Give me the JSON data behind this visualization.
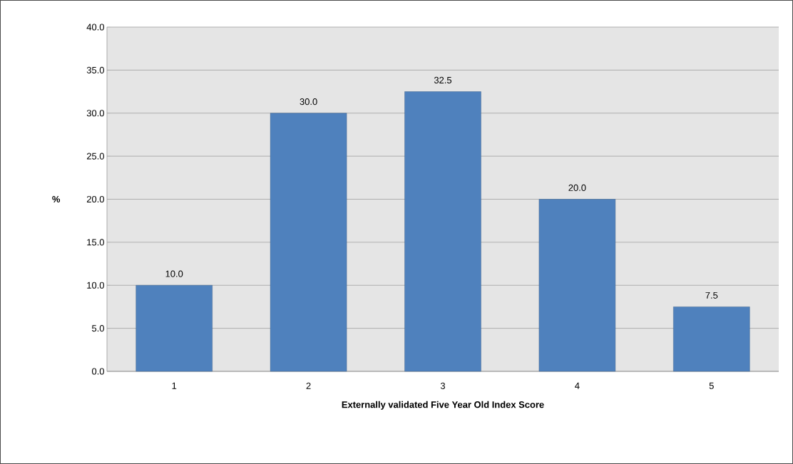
{
  "chart_data": {
    "type": "bar",
    "xlabel": "Externally validated Five Year Old Index Score",
    "ylabel": "%",
    "categories": [
      "1",
      "2",
      "3",
      "4",
      "5"
    ],
    "values": [
      10.0,
      30.0,
      32.5,
      20.0,
      7.5
    ],
    "value_labels": [
      "10.0",
      "30.0",
      "32.5",
      "20.0",
      "7.5"
    ],
    "color": "#4f81bd",
    "ylim": [
      0,
      40
    ],
    "yticks": [
      {
        "value": 0,
        "label": "0.0"
      },
      {
        "value": 5,
        "label": "5.0"
      },
      {
        "value": 10,
        "label": "10.0"
      },
      {
        "value": 15,
        "label": "15.0"
      },
      {
        "value": 20,
        "label": "20.0"
      },
      {
        "value": 25,
        "label": "25.0"
      },
      {
        "value": 30,
        "label": "30.0"
      },
      {
        "value": 35,
        "label": "35.0"
      },
      {
        "value": 40,
        "label": "40.0"
      }
    ],
    "grid": "y"
  }
}
